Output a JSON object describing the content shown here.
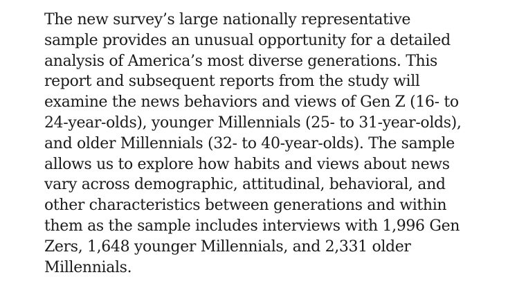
{
  "document": {
    "paragraph_lines": [
      "The new survey’s large nationally representative",
      "sample provides an unusual opportunity for a detailed",
      "analysis of America’s most diverse generations. This",
      "report and subsequent reports from the study will",
      "examine the news behaviors and views of Gen Z (16- to",
      "24-year-olds), younger Millennials (25- to 31-year-olds),",
      "and older Millennials (32- to 40-year-olds). The sample",
      "allows us to explore how habits and views about news",
      "vary across demographic, attitudinal, behavioral, and",
      "other characteristics between generations and within",
      "them as the sample includes interviews with 1,996 Gen",
      "Zers, 1,648 younger Millennials, and 2,331 older",
      "Millennials."
    ]
  }
}
